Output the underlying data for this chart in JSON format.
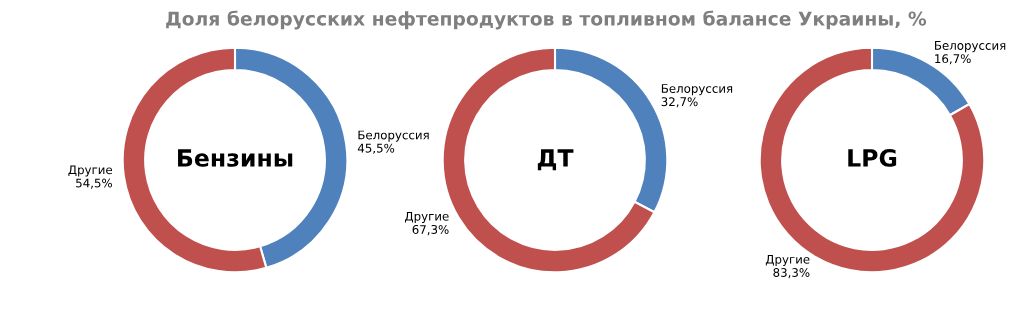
{
  "chart_data": [
    {
      "type": "donut",
      "title": "Бензины",
      "annotations": [
        "Доля белорусских нефтепродуктов в топливном балансе Украины, %"
      ],
      "categories": [
        "Белоруссия",
        "Другие"
      ],
      "values": [
        45.5,
        54.5
      ],
      "colors": [
        "#4f81bd",
        "#c0504d"
      ],
      "value_labels": [
        "45,5%",
        "54,5%"
      ]
    },
    {
      "type": "donut",
      "title": "ДТ",
      "categories": [
        "Белоруссия",
        "Другие"
      ],
      "values": [
        32.7,
        67.3
      ],
      "colors": [
        "#4f81bd",
        "#c0504d"
      ],
      "value_labels": [
        "32,7%",
        "67,3%"
      ]
    },
    {
      "type": "donut",
      "title": "LPG",
      "categories": [
        "Белоруссия",
        "Другие"
      ],
      "values": [
        16.7,
        83.3
      ],
      "colors": [
        "#4f81bd",
        "#c0504d"
      ],
      "value_labels": [
        "16,7%",
        "83,3%"
      ]
    }
  ]
}
